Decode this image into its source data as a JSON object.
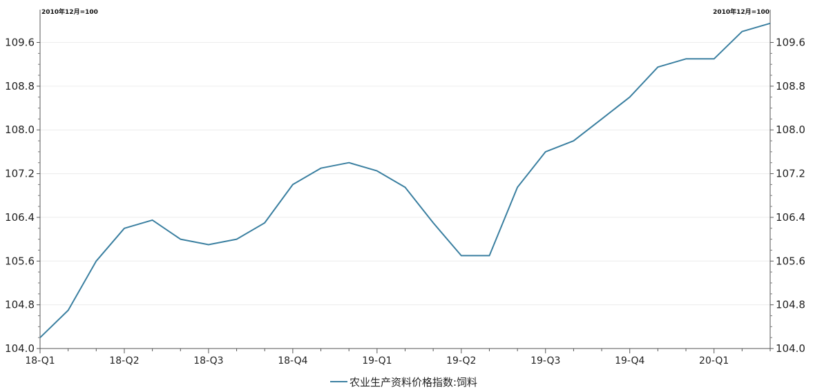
{
  "chart_data": {
    "type": "line",
    "unit_left": "2010年12月=100",
    "unit_right": "2010年12月=100",
    "x_tick_labels": [
      "18-Q1",
      "18-Q2",
      "18-Q3",
      "18-Q4",
      "19-Q1",
      "19-Q2",
      "19-Q3",
      "19-Q4",
      "20-Q1"
    ],
    "y_tick_labels": [
      "104.0",
      "104.8",
      "105.6",
      "106.4",
      "107.2",
      "108.0",
      "108.8",
      "109.6"
    ],
    "ylim": [
      104.0,
      110.2
    ],
    "y_ticks": [
      104.0,
      104.8,
      105.6,
      106.4,
      107.2,
      108.0,
      108.8,
      109.6
    ],
    "months_per_tick": 3,
    "grid": true,
    "legend_position": "bottom",
    "series": [
      {
        "name": "农业生产资料价格指数:饲料",
        "color": "#3a7fa0",
        "values": [
          104.2,
          104.7,
          105.6,
          106.2,
          106.35,
          106.0,
          105.9,
          106.0,
          106.3,
          107.0,
          107.3,
          107.4,
          107.25,
          106.95,
          106.3,
          105.7,
          105.7,
          106.95,
          107.6,
          107.8,
          108.2,
          108.6,
          109.15,
          109.3,
          109.3,
          109.8,
          109.95
        ]
      }
    ]
  }
}
